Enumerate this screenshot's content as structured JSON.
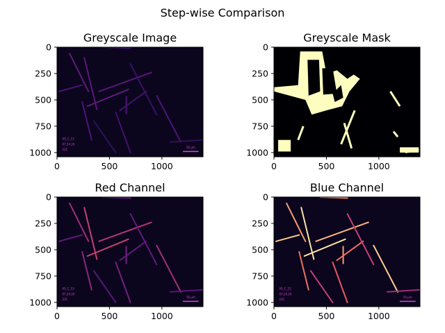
{
  "figure": {
    "title": "Step-wise Comparison"
  },
  "chart_data": [
    {
      "type": "heatmap",
      "title": "Greyscale Image",
      "colormap": "magma",
      "xlim": [
        0,
        1392
      ],
      "ylim": [
        1040,
        0
      ],
      "xticks": [
        0,
        500,
        1000
      ],
      "yticks": [
        0,
        250,
        500,
        750,
        1000
      ],
      "image_annotations": [
        "AS_C_13",
        "07.24.2X",
        "22C",
        "50 µm"
      ]
    },
    {
      "type": "heatmap",
      "title": "Greyscale Mask",
      "colormap": "magma",
      "xlim": [
        0,
        1392
      ],
      "ylim": [
        1040,
        0
      ],
      "xticks": [
        0,
        500,
        1000
      ],
      "yticks": [
        0,
        250,
        500,
        750,
        1000
      ]
    },
    {
      "type": "heatmap",
      "title": "Red Channel",
      "colormap": "magma",
      "xlim": [
        0,
        1392
      ],
      "ylim": [
        1040,
        0
      ],
      "xticks": [
        0,
        500,
        1000
      ],
      "yticks": [
        0,
        250,
        500,
        750,
        1000
      ],
      "image_annotations": [
        "AS_C_13",
        "07.24.2X",
        "22C",
        "50 µm"
      ]
    },
    {
      "type": "heatmap",
      "title": "Blue Channel",
      "colormap": "magma",
      "xlim": [
        0,
        1392
      ],
      "ylim": [
        1040,
        0
      ],
      "xticks": [
        0,
        500,
        1000
      ],
      "yticks": [
        0,
        250,
        500,
        750,
        1000
      ],
      "image_annotations": [
        "AS_C_13",
        "07.24.2X",
        "22C",
        "50 µm"
      ]
    }
  ]
}
